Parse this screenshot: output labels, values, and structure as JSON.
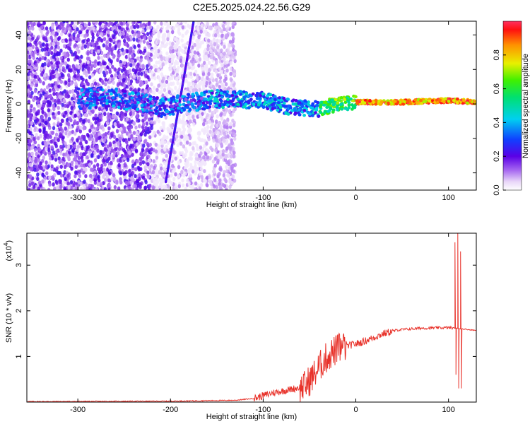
{
  "title": "C2E5.2025.024.22.56.G29",
  "chart_data": [
    {
      "type": "heatmap",
      "xlabel": "Height of straight line (km)",
      "ylabel": "Frequency (Hz)",
      "xlim": [
        -355,
        130
      ],
      "ylim": [
        -50,
        48
      ],
      "x_ticks": [
        -300,
        -200,
        -100,
        0,
        100
      ],
      "x_tick_labels": [
        "-300",
        "-200",
        "-100",
        "0",
        "100"
      ],
      "y_ticks": [
        -40,
        -20,
        0,
        20,
        40
      ],
      "y_tick_labels": [
        "-40",
        "-20",
        "0",
        "20",
        "40"
      ],
      "colorbar": {
        "label": "Normalized spectral amplitude",
        "range": [
          0,
          1
        ],
        "ticks": [
          0.0,
          0.2,
          0.4,
          0.6,
          0.8
        ],
        "tick_labels": [
          "0.0",
          "0.2",
          "0.4",
          "0.6",
          "0.8"
        ]
      },
      "ridge": [
        {
          "x": -300,
          "y": 3
        },
        {
          "x": -260,
          "y": 4
        },
        {
          "x": -210,
          "y": -2
        },
        {
          "x": -150,
          "y": 3
        },
        {
          "x": -100,
          "y": 2
        },
        {
          "x": -70,
          "y": -2
        },
        {
          "x": -40,
          "y": -3
        },
        {
          "x": -20,
          "y": 0
        },
        {
          "x": 0,
          "y": 1
        },
        {
          "x": 50,
          "y": 1
        },
        {
          "x": 100,
          "y": 2
        },
        {
          "x": 130,
          "y": 1
        }
      ],
      "grid": false
    },
    {
      "type": "line",
      "xlabel": "Height of straight line (km)",
      "ylabel": "SNR (10 * v/v)",
      "multiplier": "(x10",
      "multiplier_exp": "4",
      "multiplier_close": ")",
      "xlim": [
        -355,
        130
      ],
      "ylim": [
        0,
        3.7
      ],
      "x_ticks": [
        -300,
        -200,
        -100,
        0,
        100
      ],
      "x_tick_labels": [
        "-300",
        "-200",
        "-100",
        "0",
        "100"
      ],
      "y_ticks": [
        1,
        2,
        3
      ],
      "y_tick_labels": [
        "1",
        "2",
        "3"
      ],
      "color": "#e8322a",
      "series_points": [
        {
          "x": -355,
          "y": 0.01
        },
        {
          "x": -200,
          "y": 0.02
        },
        {
          "x": -130,
          "y": 0.04
        },
        {
          "x": -110,
          "y": 0.08
        },
        {
          "x": -90,
          "y": 0.2
        },
        {
          "x": -70,
          "y": 0.28
        },
        {
          "x": -55,
          "y": 0.35
        },
        {
          "x": -45,
          "y": 0.6
        },
        {
          "x": -35,
          "y": 0.9
        },
        {
          "x": -25,
          "y": 1.1
        },
        {
          "x": -15,
          "y": 1.2
        },
        {
          "x": -5,
          "y": 1.25
        },
        {
          "x": 5,
          "y": 1.3
        },
        {
          "x": 15,
          "y": 1.38
        },
        {
          "x": 30,
          "y": 1.5
        },
        {
          "x": 45,
          "y": 1.58
        },
        {
          "x": 70,
          "y": 1.62
        },
        {
          "x": 100,
          "y": 1.63
        },
        {
          "x": 103,
          "y": 1.63
        },
        {
          "x": 130,
          "y": 1.57
        }
      ],
      "spikes": [
        {
          "x": 107,
          "y": 3.5
        },
        {
          "x": 108,
          "y": 0.6
        },
        {
          "x": 110,
          "y": 3.7
        },
        {
          "x": 111,
          "y": 0.3
        },
        {
          "x": 113,
          "y": 3.3
        },
        {
          "x": 114,
          "y": 0.3
        }
      ],
      "grid": false
    }
  ]
}
